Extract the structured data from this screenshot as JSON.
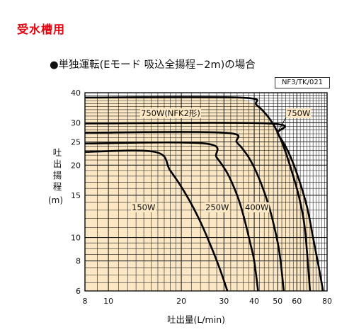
{
  "tag": "受水槽用",
  "heading": "●単独運転(Eモード 吸込全揚程−2m)の場合",
  "code": "NF3/TK/021",
  "colors": {
    "tag": "#e8000f",
    "fill": "#fbe7c4",
    "grid": "#222222",
    "curve": "#000000"
  },
  "chart_data": {
    "type": "line",
    "title": "",
    "xlabel": "吐出量(L/min)",
    "ylabel_chars": [
      "吐",
      "出",
      "揚",
      "程"
    ],
    "ylabel_unit": "(m)",
    "x_scale": "log",
    "y_scale": "log",
    "xlim": [
      8,
      80
    ],
    "ylim": [
      6,
      40
    ],
    "x_ticks": [
      8,
      10,
      20,
      30,
      40,
      50,
      60,
      80
    ],
    "y_ticks": [
      6,
      8,
      10,
      15,
      20,
      25,
      30,
      40
    ],
    "grid": true,
    "series": [
      {
        "name": "150W",
        "points": [
          [
            8,
            22.7
          ],
          [
            15.6,
            22.7
          ],
          [
            18,
            19
          ],
          [
            21,
            15
          ],
          [
            24,
            11.6
          ],
          [
            27,
            8.8
          ],
          [
            29,
            7.3
          ],
          [
            31,
            6
          ]
        ]
      },
      {
        "name": "250W",
        "points": [
          [
            8,
            24.6
          ],
          [
            25,
            24.6
          ],
          [
            28,
            21.5
          ],
          [
            31,
            18.5
          ],
          [
            34,
            15
          ],
          [
            36,
            12.5
          ],
          [
            38.5,
            9.5
          ],
          [
            40,
            8
          ],
          [
            41.5,
            6
          ]
        ]
      },
      {
        "name": "400W",
        "points": [
          [
            8,
            27.3
          ],
          [
            30,
            27.3
          ],
          [
            34,
            24.8
          ],
          [
            38,
            21.5
          ],
          [
            42,
            17.5
          ],
          [
            46,
            13.5
          ],
          [
            49,
            10.5
          ],
          [
            51,
            8.5
          ],
          [
            53,
            6
          ]
        ]
      },
      {
        "name": "750W(NFK2形)",
        "points": [
          [
            8,
            38.2
          ],
          [
            35,
            38.2
          ],
          [
            41,
            35.5
          ],
          [
            47,
            30.5
          ],
          [
            52,
            25
          ],
          [
            58,
            18
          ],
          [
            62,
            14
          ],
          [
            65,
            10.5
          ],
          [
            68,
            6
          ]
        ]
      },
      {
        "name": "750W",
        "points": [
          [
            8,
            29.8
          ],
          [
            46,
            29.8
          ],
          [
            50,
            27
          ],
          [
            55,
            23
          ],
          [
            60,
            18.5
          ],
          [
            66,
            13.5
          ],
          [
            70,
            10
          ],
          [
            74,
            7.5
          ],
          [
            77,
            6
          ]
        ]
      }
    ],
    "labels": {
      "s150": "150W",
      "s250": "250W",
      "s400": "400W",
      "s750nfk": "750W(NFK2形)",
      "s750": "750W"
    }
  }
}
